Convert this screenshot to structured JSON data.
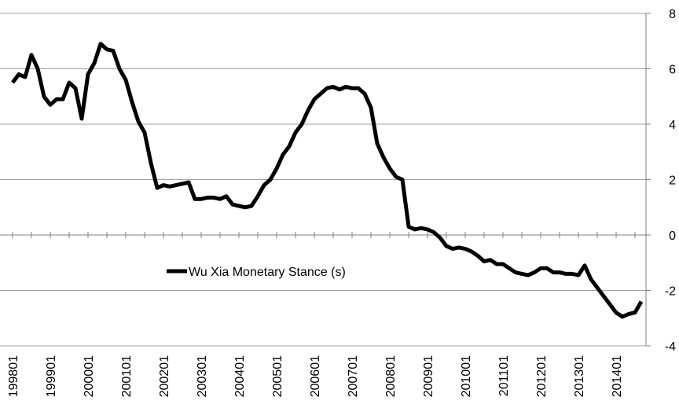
{
  "chart_data": {
    "type": "line",
    "categories": [
      "199801",
      null,
      null,
      null,
      null,
      null,
      "199901",
      null,
      null,
      null,
      null,
      null,
      "200001",
      null,
      null,
      null,
      null,
      null,
      "200101",
      null,
      null,
      null,
      null,
      null,
      "200201",
      null,
      null,
      null,
      null,
      null,
      "200301",
      null,
      null,
      null,
      null,
      null,
      "200401",
      null,
      null,
      null,
      null,
      null,
      "200501",
      null,
      null,
      null,
      null,
      null,
      "200601",
      null,
      null,
      null,
      null,
      null,
      "200701",
      null,
      null,
      null,
      null,
      null,
      "200801",
      null,
      null,
      null,
      null,
      null,
      "200901",
      null,
      null,
      null,
      null,
      null,
      "201001",
      null,
      null,
      null,
      null,
      null,
      "201101",
      null,
      null,
      null,
      null,
      null,
      "201201",
      null,
      null,
      null,
      null,
      null,
      "201301",
      null,
      null,
      null,
      null,
      null,
      "201401",
      null,
      null,
      null,
      null
    ],
    "series": [
      {
        "name": "Wu Xia Monetary Stance (s)",
        "color": "#000000",
        "values": [
          5.5,
          5.8,
          5.7,
          6.5,
          6.0,
          5.0,
          4.7,
          4.9,
          4.9,
          5.5,
          5.3,
          4.2,
          5.8,
          6.2,
          6.9,
          6.7,
          6.65,
          6.0,
          5.6,
          4.8,
          4.1,
          3.7,
          2.6,
          1.7,
          1.8,
          1.75,
          1.8,
          1.85,
          1.9,
          1.3,
          1.3,
          1.35,
          1.35,
          1.3,
          1.4,
          1.1,
          1.05,
          1.0,
          1.05,
          1.4,
          1.8,
          2.0,
          2.4,
          2.9,
          3.2,
          3.7,
          4.0,
          4.5,
          4.9,
          5.1,
          5.3,
          5.35,
          5.25,
          5.35,
          5.3,
          5.3,
          5.1,
          4.6,
          3.3,
          2.8,
          2.4,
          2.1,
          2.0,
          0.3,
          0.2,
          0.25,
          0.2,
          0.1,
          -0.1,
          -0.4,
          -0.5,
          -0.45,
          -0.5,
          -0.6,
          -0.75,
          -0.95,
          -0.9,
          -1.05,
          -1.05,
          -1.2,
          -1.35,
          -1.4,
          -1.45,
          -1.35,
          -1.2,
          -1.2,
          -1.35,
          -1.35,
          -1.4,
          -1.4,
          -1.45,
          -1.1,
          -1.6,
          -1.9,
          -2.2,
          -2.5,
          -2.8,
          -2.95,
          -2.85,
          -2.8,
          -2.4
        ]
      }
    ],
    "ylim": [
      -4,
      8
    ],
    "yticks": [
      -4,
      -2,
      0,
      2,
      4,
      6,
      8
    ],
    "grid": true
  }
}
